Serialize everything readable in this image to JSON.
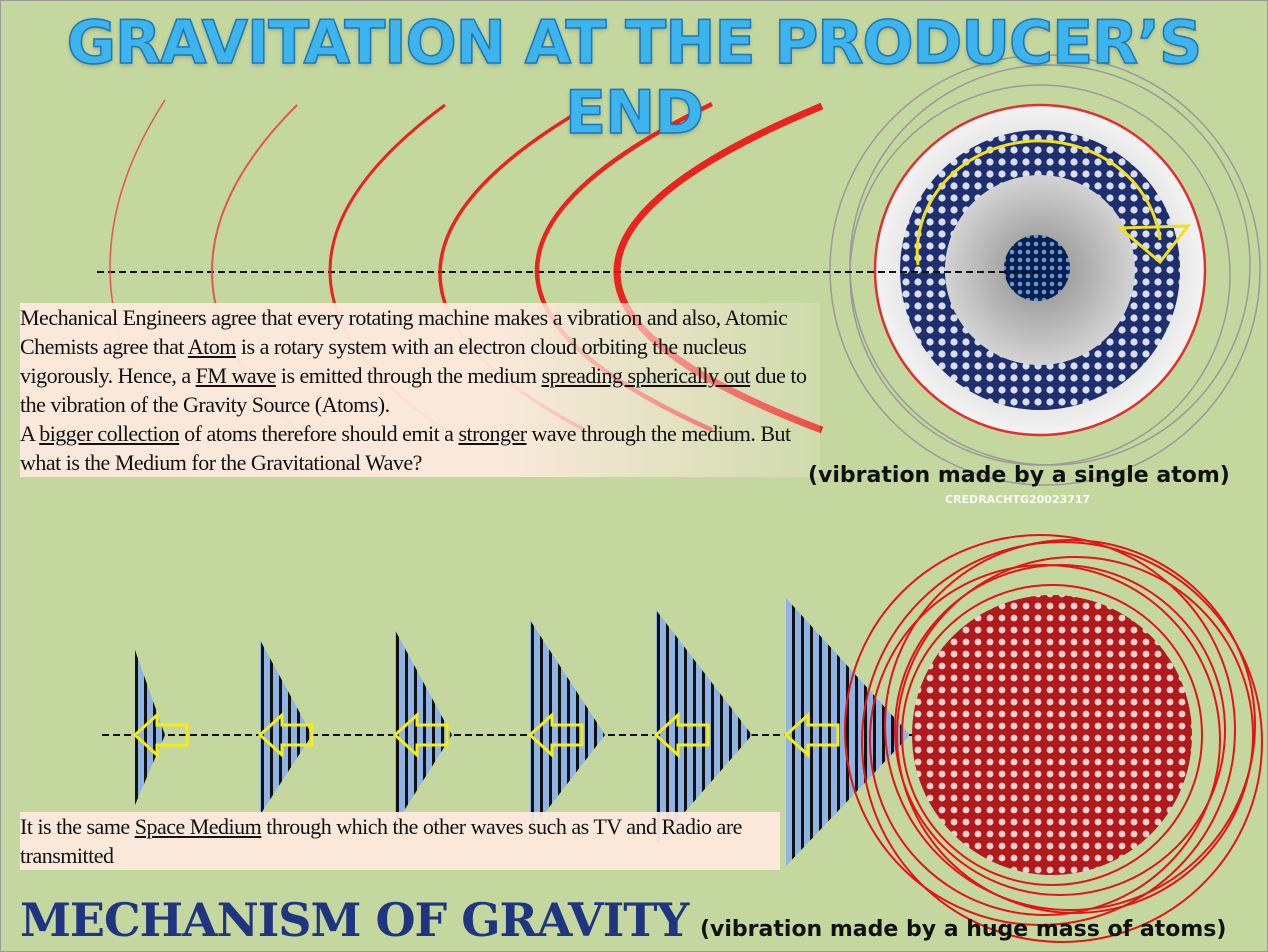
{
  "title": "GRAVITATION AT THE PRODUCER’S END",
  "top_caption": "(vibration made by a single atom)",
  "watermark": "CREDRACHTG20023717",
  "text_block_1": {
    "paragraphs": [
      [
        {
          "text": "Mechanical Engineers agree that every rotating machine makes a vibration and also, Atomic Chemists agree that ",
          "underline": false
        },
        {
          "text": "Atom",
          "underline": true
        },
        {
          "text": " is a rotary system with an electron cloud orbiting the nucleus vigorously. Hence, a ",
          "underline": false
        },
        {
          "text": "FM wave",
          "underline": true
        },
        {
          "text": " is emitted through the medium ",
          "underline": false
        },
        {
          "text": "spreading spherically out",
          "underline": true
        },
        {
          "text": " due to the vibration of the Gravity Source (Atoms).",
          "underline": false
        }
      ],
      [
        {
          "text": "A ",
          "underline": false
        },
        {
          "text": "bigger collection",
          "underline": true
        },
        {
          "text": " of atoms therefore should emit a ",
          "underline": false
        },
        {
          "text": "stronger",
          "underline": true
        },
        {
          "text": " wave through the medium. But what is the Medium for the Gravitational Wave?",
          "underline": false
        }
      ]
    ]
  },
  "text_block_2": {
    "paragraphs": [
      [
        {
          "text": "It is the same ",
          "underline": false
        },
        {
          "text": "Space Medium",
          "underline": true
        },
        {
          "text": " through which the other waves such as TV and Radio are transmitted",
          "underline": false
        }
      ]
    ]
  },
  "footer_title": "MECHANISM OF GRAVITY",
  "bottom_caption": "(vibration made by a huge mass of atoms)"
}
